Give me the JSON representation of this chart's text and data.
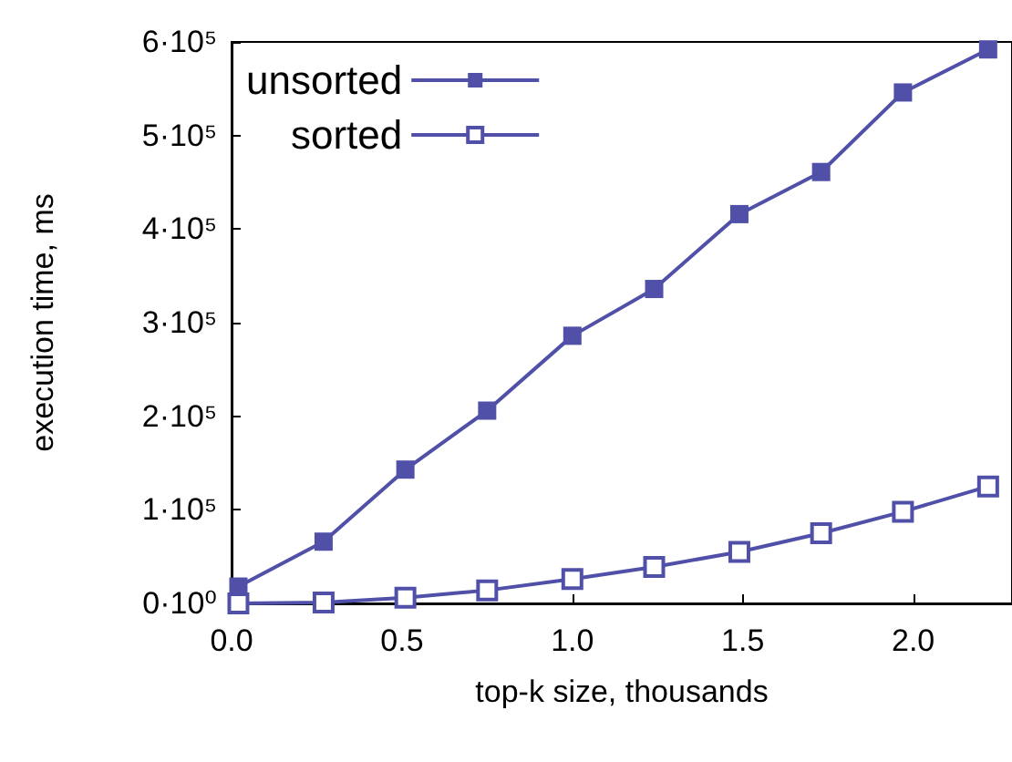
{
  "chart_data": {
    "type": "line",
    "xlabel": "top-k size, thousands",
    "ylabel": "execution time, ms",
    "x": [
      0.02,
      0.27,
      0.51,
      0.75,
      1.0,
      1.24,
      1.49,
      1.73,
      1.97,
      2.22
    ],
    "series": [
      {
        "name": "unsorted",
        "color": "#5050a8",
        "values": [
          18000,
          66000,
          143000,
          206000,
          286000,
          336000,
          416000,
          461000,
          546000,
          592000
        ]
      },
      {
        "name": "sorted",
        "color": "#5050a8",
        "values": [
          0,
          1000,
          6000,
          14000,
          26000,
          39000,
          55000,
          75000,
          98000,
          125000
        ]
      }
    ],
    "xlim": [
      0,
      2.29
    ],
    "xticks": [
      {
        "value": 0,
        "label": "0.0"
      },
      {
        "value": 0.5,
        "label": "0.5"
      },
      {
        "value": 1,
        "label": "1.0"
      },
      {
        "value": 1.5,
        "label": "1.5"
      },
      {
        "value": 2,
        "label": "2.0"
      }
    ],
    "ylim": [
      0,
      600000
    ],
    "yticks": [
      {
        "value": 0,
        "label": "0·10⁰"
      },
      {
        "value": 100000,
        "label": "1·10⁵"
      },
      {
        "value": 200000,
        "label": "2·10⁵"
      },
      {
        "value": 300000,
        "label": "3·10⁵"
      },
      {
        "value": 400000,
        "label": "4·10⁵"
      },
      {
        "value": 500000,
        "label": "5·10⁵"
      },
      {
        "value": 600000,
        "label": "6·10⁵"
      }
    ],
    "grid": false,
    "legend": "top left",
    "marker": "square",
    "line_style": "solid"
  }
}
